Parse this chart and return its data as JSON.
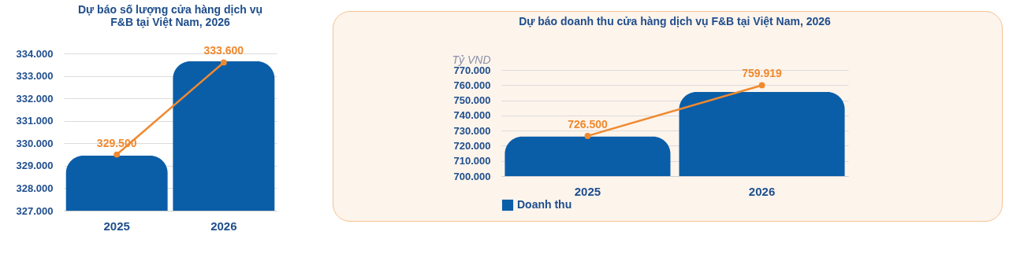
{
  "chart_data": [
    {
      "type": "bar",
      "title": "Dự báo số lượng cửa hàng dịch vụ F&B tại Việt Nam, 2026",
      "categories": [
        "2025",
        "2026"
      ],
      "series": [
        {
          "color": "#0a5ea8",
          "values": [
            329450,
            333650
          ]
        },
        {
          "type": "line",
          "color": "#f0892e",
          "values": [
            329500,
            333600
          ],
          "value_labels": [
            "329.500",
            "333.600"
          ],
          "marker": "circle"
        }
      ],
      "ylim": [
        327000,
        334000
      ],
      "yticks": [
        {
          "value": 327000,
          "label": "327.000"
        },
        {
          "value": 328000,
          "label": "328.000"
        },
        {
          "value": 329000,
          "label": "329.000"
        },
        {
          "value": 330000,
          "label": "330.000"
        },
        {
          "value": 331000,
          "label": "331.000"
        },
        {
          "value": 332000,
          "label": "332.000"
        },
        {
          "value": 333000,
          "label": "333.000"
        },
        {
          "value": 334000,
          "label": "334.000"
        }
      ],
      "grid": "y"
    },
    {
      "type": "bar",
      "title": "Dự báo doanh thu cửa hàng dịch vụ F&B tại Việt Nam, 2026",
      "ylabel": "Tỷ VND",
      "categories": [
        "2025",
        "2026"
      ],
      "series": [
        {
          "name": "Doanh thu",
          "color": "#0a5ea8",
          "values": [
            726000,
            755500
          ]
        },
        {
          "type": "line",
          "color": "#f0892e",
          "values": [
            726500,
            759919
          ],
          "value_labels": [
            "726.500",
            "759.919"
          ],
          "marker": "circle"
        }
      ],
      "ylim": [
        700000,
        770000
      ],
      "yticks": [
        {
          "value": 700000,
          "label": "700.000"
        },
        {
          "value": 710000,
          "label": "710.000"
        },
        {
          "value": 720000,
          "label": "720.000"
        },
        {
          "value": 730000,
          "label": "730.000"
        },
        {
          "value": 740000,
          "label": "740.000"
        },
        {
          "value": 750000,
          "label": "750.000"
        },
        {
          "value": 760000,
          "label": "760.000"
        },
        {
          "value": 770000,
          "label": "770.000"
        }
      ],
      "grid": "y",
      "legend": "bottom"
    }
  ]
}
